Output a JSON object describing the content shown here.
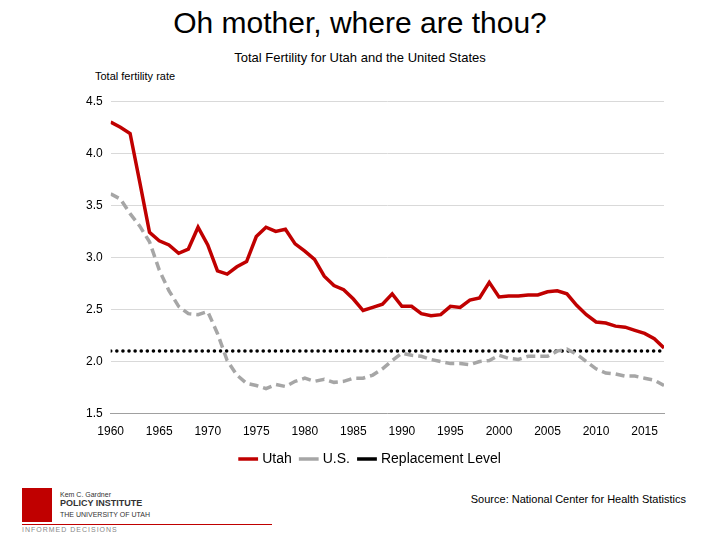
{
  "chart_data": {
    "type": "line",
    "title": "Oh mother, where are thou?",
    "subtitle": "Total Fertility for Utah and the United States",
    "y_label": "Total fertility rate",
    "source": "Source: National Center for Health Statistics",
    "logo_text": [
      "Kem C. Gardner",
      "POLICY INSTITUTE",
      "THE UNIVERSITY OF UTAH",
      "INFORMED DECISIONS"
    ],
    "x": [
      1960,
      1961,
      1962,
      1963,
      1964,
      1965,
      1966,
      1967,
      1968,
      1969,
      1970,
      1971,
      1972,
      1973,
      1974,
      1975,
      1976,
      1977,
      1978,
      1979,
      1980,
      1981,
      1982,
      1983,
      1984,
      1985,
      1986,
      1987,
      1988,
      1989,
      1990,
      1991,
      1992,
      1993,
      1994,
      1995,
      1996,
      1997,
      1998,
      1999,
      2000,
      2001,
      2002,
      2003,
      2004,
      2005,
      2006,
      2007,
      2008,
      2009,
      2010,
      2011,
      2012,
      2013,
      2014,
      2015,
      2016,
      2017
    ],
    "series": [
      {
        "name": "Utah",
        "color": "#c00000",
        "line_style": "solid",
        "marker": "none",
        "values": [
          4.3,
          4.25,
          4.19,
          3.72,
          3.24,
          3.16,
          3.12,
          3.04,
          3.08,
          3.29,
          3.12,
          2.87,
          2.84,
          2.91,
          2.96,
          3.2,
          3.29,
          3.25,
          3.27,
          3.13,
          3.06,
          2.98,
          2.82,
          2.73,
          2.69,
          2.6,
          2.49,
          2.52,
          2.55,
          2.65,
          2.53,
          2.53,
          2.46,
          2.44,
          2.45,
          2.53,
          2.52,
          2.59,
          2.61,
          2.76,
          2.62,
          2.63,
          2.63,
          2.64,
          2.64,
          2.67,
          2.68,
          2.65,
          2.54,
          2.45,
          2.38,
          2.37,
          2.34,
          2.33,
          2.3,
          2.27,
          2.22,
          2.13
        ]
      },
      {
        "name": "U.S.",
        "color": "#a6a6a6",
        "line_style": "dashed",
        "marker": "none",
        "values": [
          3.61,
          3.56,
          3.42,
          3.3,
          3.15,
          2.88,
          2.68,
          2.53,
          2.46,
          2.45,
          2.48,
          2.27,
          2.01,
          1.87,
          1.79,
          1.77,
          1.74,
          1.78,
          1.76,
          1.81,
          1.84,
          1.81,
          1.83,
          1.8,
          1.81,
          1.84,
          1.84,
          1.87,
          1.93,
          2.01,
          2.08,
          2.06,
          2.05,
          2.02,
          2.0,
          1.98,
          1.98,
          1.97,
          2.0,
          2.01,
          2.06,
          2.03,
          2.02,
          2.05,
          2.05,
          2.05,
          2.1,
          2.12,
          2.07,
          2.0,
          1.93,
          1.89,
          1.88,
          1.86,
          1.86,
          1.84,
          1.82,
          1.77
        ]
      },
      {
        "name": "Replacement Level",
        "color": "#000000",
        "line_style": "dotted",
        "marker": "none",
        "values": [
          2.1,
          2.1,
          2.1,
          2.1,
          2.1,
          2.1,
          2.1,
          2.1,
          2.1,
          2.1,
          2.1,
          2.1,
          2.1,
          2.1,
          2.1,
          2.1,
          2.1,
          2.1,
          2.1,
          2.1,
          2.1,
          2.1,
          2.1,
          2.1,
          2.1,
          2.1,
          2.1,
          2.1,
          2.1,
          2.1,
          2.1,
          2.1,
          2.1,
          2.1,
          2.1,
          2.1,
          2.1,
          2.1,
          2.1,
          2.1,
          2.1,
          2.1,
          2.1,
          2.1,
          2.1,
          2.1,
          2.1,
          2.1,
          2.1,
          2.1,
          2.1,
          2.1,
          2.1,
          2.1,
          2.1,
          2.1,
          2.1,
          2.1
        ]
      }
    ],
    "xlim": [
      1960,
      2017
    ],
    "xticks": [
      1960,
      1965,
      1970,
      1975,
      1980,
      1985,
      1990,
      1995,
      2000,
      2005,
      2010,
      2015
    ],
    "ylim": [
      1.5,
      4.5
    ],
    "yticks": [
      1.5,
      {
        "value": 2,
        "label": "2.0"
      },
      2.5,
      {
        "value": 3,
        "label": "3.0"
      },
      3.5,
      {
        "value": 4,
        "label": "4.0"
      },
      4.5
    ],
    "grid": true,
    "legend": "bottom"
  }
}
